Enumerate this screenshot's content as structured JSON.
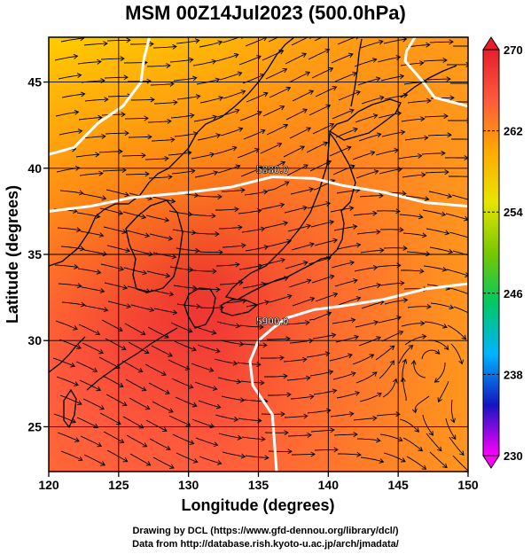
{
  "title": "MSM 00Z14Jul2023 (500.0hPa)",
  "chart_data": {
    "type": "heatmap",
    "title": "MSM 00Z14Jul2023 (500.0hPa)",
    "xlabel": "Longitude (degrees)",
    "ylabel": "Latitude  (degrees)",
    "xlim": [
      120,
      150
    ],
    "ylim": [
      22.4,
      47.6
    ],
    "x_ticks": [
      120,
      125,
      130,
      135,
      140,
      145,
      150
    ],
    "y_ticks": [
      25,
      30,
      35,
      40,
      45
    ],
    "x_tick_labels": [
      "120",
      "125",
      "130",
      "135",
      "140",
      "145",
      "150"
    ],
    "y_tick_labels": [
      "25",
      "30",
      "35",
      "40",
      "45"
    ],
    "grid": true,
    "colorbar": {
      "min": 230,
      "max": 270,
      "ticks": [
        270,
        262,
        254,
        246,
        238,
        230
      ],
      "tick_labels": [
        "270",
        "262",
        "254",
        "246",
        "238",
        "230"
      ],
      "placement": "right",
      "colors": [
        "#ff00ff",
        "#1515c0",
        "#00b4ff",
        "#00c864",
        "#78c800",
        "#e6e600",
        "#ffaa00",
        "#ff5a3c",
        "#e61e2d"
      ]
    },
    "contours": [
      {
        "label": "5880.0",
        "color": "#ffffff",
        "path": [
          [
            120,
            37.5
          ],
          [
            123,
            37.8
          ],
          [
            126,
            38.3
          ],
          [
            130,
            38.6
          ],
          [
            133,
            38.9
          ],
          [
            136,
            39.5
          ],
          [
            139,
            39.4
          ],
          [
            141,
            39.0
          ],
          [
            144,
            38.6
          ],
          [
            147,
            38.0
          ],
          [
            150,
            37.8
          ]
        ]
      },
      {
        "label": "5900.0",
        "color": "#ffffff",
        "path": [
          [
            150,
            33.3
          ],
          [
            147,
            33.0
          ],
          [
            144,
            32.4
          ],
          [
            141,
            32.0
          ],
          [
            139,
            31.8
          ],
          [
            137,
            31.3
          ],
          [
            136,
            30.7
          ],
          [
            135,
            30.0
          ],
          [
            134.4,
            28.8
          ],
          [
            134.6,
            27.4
          ],
          [
            136,
            25.7
          ],
          [
            136.3,
            22.4
          ]
        ]
      },
      {
        "label": "",
        "color": "#ffffff",
        "path": [
          [
            120,
            40.8
          ],
          [
            121.8,
            41.2
          ],
          [
            123.5,
            42.6
          ],
          [
            125.3,
            43.6
          ],
          [
            126.6,
            45.0
          ],
          [
            126.8,
            46.3
          ],
          [
            127.2,
            47.6
          ]
        ]
      },
      {
        "label": "",
        "color": "#ffffff",
        "path": [
          [
            146.2,
            47.6
          ],
          [
            145.6,
            46.8
          ],
          [
            145.5,
            46.2
          ],
          [
            146.8,
            45.0
          ],
          [
            147.6,
            44.1
          ],
          [
            150,
            43.6
          ]
        ]
      }
    ],
    "annotations": {
      "cyclonic_circulation_center": [
        147.4,
        29.0
      ]
    }
  },
  "footer": {
    "line1": "Drawing by DCL (https://www.gfd-dennou.org/library/dcl/)",
    "line2": "Data from http://database.rish.kyoto-u.ac.jp/arch/jmadata/"
  }
}
